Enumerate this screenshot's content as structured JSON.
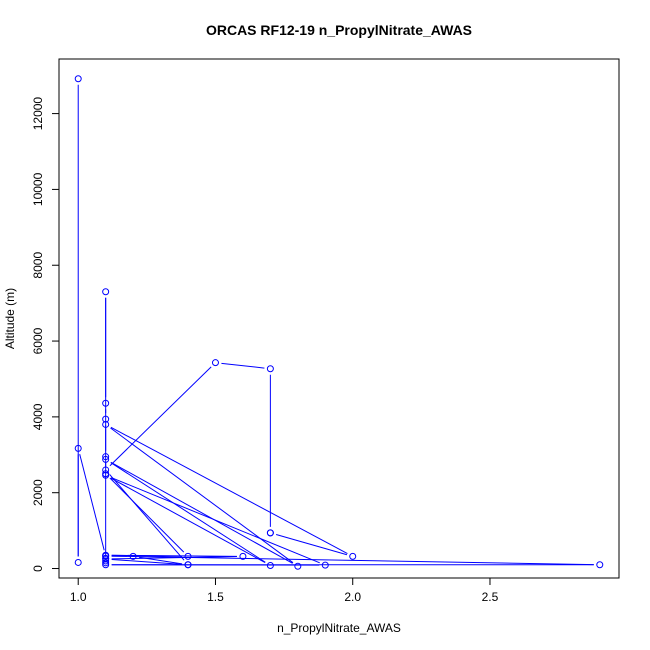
{
  "chart_data": {
    "type": "line",
    "title": "ORCAS RF12-19 n_PropylNitrate_AWAS",
    "xlabel": "n_PropylNitrate_AWAS",
    "ylabel": "Altitude (m)",
    "xlim": [
      0.93,
      2.97
    ],
    "ylim": [
      -250,
      13440
    ],
    "x_ticks": [
      1.0,
      1.5,
      2.0,
      2.5
    ],
    "x_tick_labels": [
      "1.0",
      "1.5",
      "2.0",
      "2.5"
    ],
    "y_ticks": [
      0,
      2000,
      4000,
      6000,
      8000,
      10000,
      12000
    ],
    "y_tick_labels": [
      "0",
      "2000",
      "4000",
      "6000",
      "8000",
      "10000",
      "12000"
    ],
    "grid": false,
    "series": [
      {
        "color": "#0000ff",
        "marker": "open-circle",
        "x": [
          1.0,
          1.0,
          1.0,
          1.1,
          1.1,
          1.1,
          1.1,
          1.1,
          1.1,
          1.1,
          1.1,
          1.1,
          1.4,
          1.1,
          1.6,
          1.1,
          1.4,
          1.1,
          1.5,
          1.7,
          1.7,
          1.7,
          2.0,
          1.1,
          1.8,
          1.1,
          1.7,
          1.1,
          1.9,
          1.1,
          2.9,
          1.1,
          1.2,
          1.4
        ],
        "y": [
          12920,
          160,
          3170,
          330,
          270,
          200,
          150,
          7300,
          4360,
          3940,
          2950,
          2500,
          320,
          350,
          320,
          250,
          100,
          2600,
          5430,
          5270,
          940,
          940,
          320,
          3800,
          60,
          2880,
          80,
          2460,
          90,
          100,
          100,
          330,
          320,
          100
        ]
      }
    ]
  }
}
